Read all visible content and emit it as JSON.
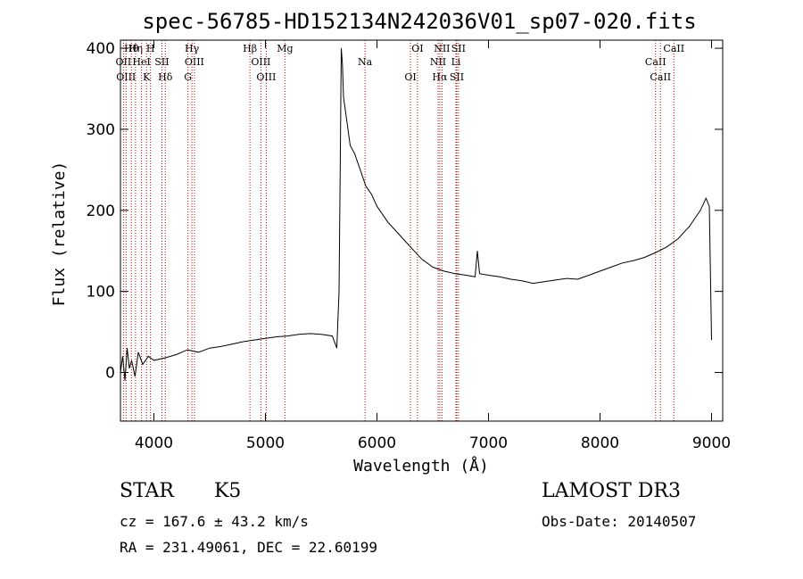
{
  "chart_data": {
    "type": "line",
    "title": "spec-56785-HD152134N242036V01_sp07-020.fits",
    "xlabel": "Wavelength (Å)",
    "ylabel": "Flux (relative)",
    "xlim": [
      3700,
      9100
    ],
    "ylim": [
      -60,
      410
    ],
    "xticks": [
      "4000",
      "5000",
      "6000",
      "7000",
      "8000",
      "9000"
    ],
    "yticks": [
      "0",
      "100",
      "200",
      "300",
      "400"
    ],
    "series": [
      {
        "name": "flux",
        "x": [
          3700,
          3720,
          3740,
          3760,
          3780,
          3800,
          3830,
          3860,
          3900,
          3950,
          4000,
          4100,
          4200,
          4300,
          4400,
          4500,
          4600,
          4700,
          4800,
          4900,
          5000,
          5100,
          5200,
          5300,
          5400,
          5500,
          5600,
          5640,
          5660,
          5670,
          5680,
          5690,
          5700,
          5720,
          5740,
          5760,
          5800,
          5850,
          5900,
          5950,
          6000,
          6100,
          6200,
          6300,
          6400,
          6500,
          6600,
          6700,
          6800,
          6880,
          6900,
          6920,
          7000,
          7100,
          7200,
          7300,
          7400,
          7500,
          7600,
          7700,
          7800,
          7900,
          8000,
          8100,
          8200,
          8300,
          8400,
          8500,
          8600,
          8700,
          8800,
          8900,
          8950,
          8980,
          9000
        ],
        "y": [
          0,
          20,
          -10,
          30,
          5,
          15,
          -5,
          25,
          10,
          20,
          15,
          18,
          22,
          28,
          25,
          30,
          32,
          35,
          38,
          40,
          42,
          44,
          45,
          47,
          48,
          47,
          45,
          30,
          100,
          250,
          400,
          380,
          340,
          320,
          300,
          280,
          270,
          250,
          230,
          220,
          205,
          185,
          170,
          155,
          140,
          130,
          125,
          122,
          120,
          118,
          150,
          122,
          120,
          118,
          115,
          113,
          110,
          112,
          114,
          116,
          115,
          120,
          125,
          130,
          135,
          138,
          142,
          148,
          155,
          165,
          180,
          200,
          215,
          205,
          40
        ]
      }
    ],
    "lines": [
      {
        "name": "Hθ",
        "wl": 3798
      },
      {
        "name": "OII",
        "wl": 3727
      },
      {
        "name": "OIII",
        "wl": 3750
      },
      {
        "name": "Hη",
        "wl": 3835
      },
      {
        "name": "HeI",
        "wl": 3889
      },
      {
        "name": "K",
        "wl": 3934
      },
      {
        "name": "H",
        "wl": 3969
      },
      {
        "name": "SII",
        "wl": 4072
      },
      {
        "name": "Hδ",
        "wl": 4102
      },
      {
        "name": "Hγ",
        "wl": 4341
      },
      {
        "name": "OIII",
        "wl": 4363
      },
      {
        "name": "G",
        "wl": 4305
      },
      {
        "name": "Hβ",
        "wl": 4861
      },
      {
        "name": "OIII",
        "wl": 4959
      },
      {
        "name": "OIII",
        "wl": 5007
      },
      {
        "name": "Mg",
        "wl": 5175
      },
      {
        "name": "Na",
        "wl": 5893
      },
      {
        "name": "OI",
        "wl": 6300
      },
      {
        "name": "OI",
        "wl": 6363
      },
      {
        "name": "NII",
        "wl": 6548
      },
      {
        "name": "Hα",
        "wl": 6563
      },
      {
        "name": "NII",
        "wl": 6583
      },
      {
        "name": "Li",
        "wl": 6708
      },
      {
        "name": "SII",
        "wl": 6716
      },
      {
        "name": "SII",
        "wl": 6731
      },
      {
        "name": "CaII",
        "wl": 8498
      },
      {
        "name": "CaII",
        "wl": 8542
      },
      {
        "name": "CaII",
        "wl": 8662
      }
    ]
  },
  "info": {
    "class": "STAR",
    "subclass": "K5",
    "survey": "LAMOST DR3",
    "cz": "cz = 167.6 ± 43.2 km/s",
    "obs_date": "Obs-Date: 20140507",
    "coords": "RA = 231.49061, DEC =  22.60199"
  },
  "colors": {
    "spectrum": "#000000",
    "line_marker": "#cc0000",
    "axis": "#000000"
  }
}
